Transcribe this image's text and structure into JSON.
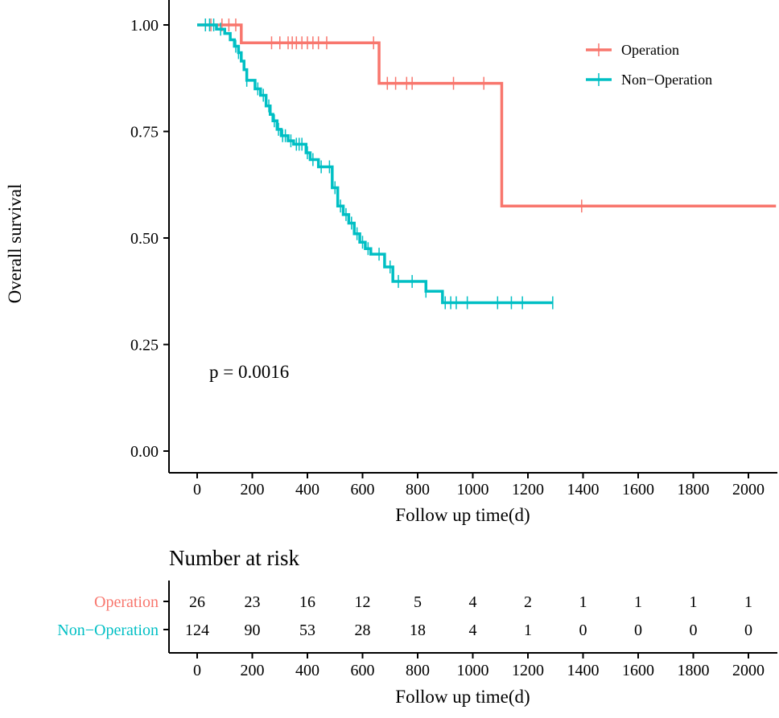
{
  "chart_data": {
    "type": "line",
    "subtype": "kaplan-meier",
    "title": "",
    "xlabel": "Follow up time(d)",
    "ylabel": "Overall survival",
    "xlim": [
      -100,
      2100
    ],
    "ylim": [
      0,
      1
    ],
    "x_ticks": [
      0,
      200,
      400,
      600,
      800,
      1000,
      1200,
      1400,
      1600,
      1800,
      2000
    ],
    "y_ticks": [
      0,
      0.25,
      0.5,
      0.75,
      1
    ],
    "y_tick_labels": [
      "0.00",
      "0.25",
      "0.50",
      "0.75",
      "1.00"
    ],
    "legend_position": "top-right",
    "annotation": "p = 0.0016",
    "series": [
      {
        "name": "Operation",
        "color": "#F8766D",
        "steps": [
          [
            0,
            1.0
          ],
          [
            160,
            0.958
          ],
          [
            660,
            0.863
          ],
          [
            1105,
            0.575
          ],
          [
            2100,
            0.575
          ]
        ],
        "censor_times": [
          30,
          50,
          90,
          115,
          140,
          270,
          300,
          330,
          345,
          360,
          380,
          400,
          420,
          440,
          470,
          640,
          690,
          720,
          760,
          780,
          930,
          1040,
          1395
        ]
      },
      {
        "name": "Non−Operation",
        "color": "#00BFC4",
        "steps": [
          [
            0,
            1.0
          ],
          [
            70,
            0.99
          ],
          [
            100,
            0.98
          ],
          [
            120,
            0.965
          ],
          [
            135,
            0.95
          ],
          [
            150,
            0.935
          ],
          [
            160,
            0.915
          ],
          [
            170,
            0.895
          ],
          [
            180,
            0.87
          ],
          [
            210,
            0.85
          ],
          [
            230,
            0.835
          ],
          [
            250,
            0.81
          ],
          [
            265,
            0.79
          ],
          [
            275,
            0.775
          ],
          [
            290,
            0.755
          ],
          [
            305,
            0.74
          ],
          [
            330,
            0.728
          ],
          [
            350,
            0.72
          ],
          [
            395,
            0.7
          ],
          [
            410,
            0.684
          ],
          [
            440,
            0.667
          ],
          [
            490,
            0.618
          ],
          [
            510,
            0.575
          ],
          [
            530,
            0.555
          ],
          [
            550,
            0.535
          ],
          [
            570,
            0.51
          ],
          [
            590,
            0.49
          ],
          [
            610,
            0.475
          ],
          [
            630,
            0.462
          ],
          [
            680,
            0.432
          ],
          [
            710,
            0.398
          ],
          [
            760,
            0.398
          ],
          [
            800,
            0.398
          ],
          [
            830,
            0.375
          ],
          [
            890,
            0.348
          ],
          [
            1290,
            0.348
          ]
        ],
        "censor_times": [
          30,
          45,
          60,
          85,
          140,
          150,
          180,
          220,
          240,
          260,
          280,
          295,
          310,
          320,
          340,
          360,
          370,
          380,
          400,
          420,
          450,
          480,
          500,
          520,
          540,
          560,
          580,
          600,
          620,
          660,
          700,
          730,
          780,
          830,
          900,
          920,
          940,
          980,
          1090,
          1140,
          1180,
          1290
        ]
      }
    ],
    "risk_table": {
      "title": "Number at risk",
      "xlabel": "Follow up time(d)",
      "times": [
        0,
        200,
        400,
        600,
        800,
        1000,
        1200,
        1400,
        1600,
        1800,
        2000
      ],
      "time_labels": [
        "0",
        "200",
        "400",
        "600",
        "800",
        "1000",
        "1200",
        "1400",
        "1600",
        "1800",
        "2000"
      ],
      "rows": [
        {
          "name": "Operation",
          "color": "#F8766D",
          "counts": [
            "26",
            "23",
            "16",
            "12",
            "5",
            "4",
            "2",
            "1",
            "1",
            "1",
            "1"
          ]
        },
        {
          "name": "Non−Operation",
          "color": "#00BFC4",
          "counts": [
            "124",
            "90",
            "53",
            "28",
            "18",
            "4",
            "1",
            "0",
            "0",
            "0",
            "0"
          ]
        }
      ]
    }
  }
}
